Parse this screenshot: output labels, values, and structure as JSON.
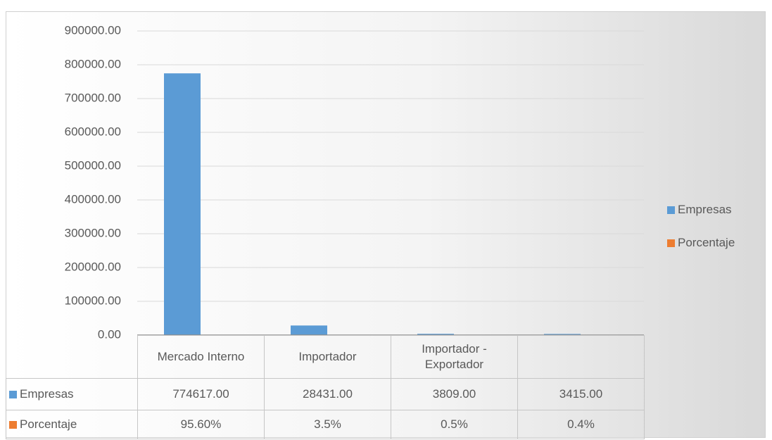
{
  "chart_data": {
    "type": "bar",
    "categories": [
      "Mercado Interno",
      "Importador",
      "Importador - Exportador",
      null
    ],
    "series": [
      {
        "name": "Empresas",
        "color": "#5b9bd5",
        "values": [
          774617,
          28431,
          3809,
          3415
        ],
        "value_labels": [
          "774617.00",
          "28431.00",
          "3809.00",
          "3415.00"
        ]
      },
      {
        "name": "Porcentaje",
        "color": "#ed7d31",
        "values": [
          95.6,
          3.5,
          0.5,
          0.4
        ],
        "value_labels": [
          "95.60%",
          "3.5%",
          "0.5%",
          "0.4%"
        ]
      }
    ],
    "ylim": [
      0,
      900000
    ],
    "yticks": [
      {
        "value": 0,
        "label": "0.00"
      },
      {
        "value": 100000,
        "label": "100000.00"
      },
      {
        "value": 200000,
        "label": "200000.00"
      },
      {
        "value": 300000,
        "label": "300000.00"
      },
      {
        "value": 400000,
        "label": "400000.00"
      },
      {
        "value": 500000,
        "label": "500000.00"
      },
      {
        "value": 600000,
        "label": "600000.00"
      },
      {
        "value": 700000,
        "label": "700000.00"
      },
      {
        "value": 800000,
        "label": "800000.00"
      },
      {
        "value": 900000,
        "label": "900000.00"
      }
    ],
    "grid": true,
    "legend": "right"
  }
}
